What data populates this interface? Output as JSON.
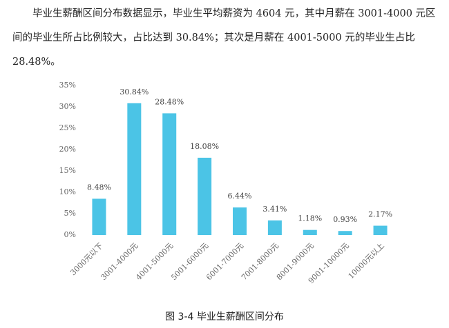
{
  "paragraph": "毕业生薪酬区间分布数据显示，毕业生平均薪资为 4604 元，其中月薪在 3001-4000 元区间的毕业生所占比例较大，占比达到 30.84%；其次是月薪在 4001-5000 元的毕业生占比 28.48%。",
  "caption": "图 3-4 毕业生薪酬区间分布",
  "chart_data": {
    "type": "bar",
    "categories": [
      "3000元以下",
      "3001-4000元",
      "4001-5000元",
      "5001-6000元",
      "6001-7000元",
      "7001-8000元",
      "8001-9000元",
      "9001-10000元",
      "10000元以上"
    ],
    "values": [
      8.48,
      30.84,
      28.48,
      18.08,
      6.44,
      3.41,
      1.18,
      0.93,
      2.17
    ],
    "value_labels": [
      "8.48%",
      "30.84%",
      "28.48%",
      "18.08%",
      "6.44%",
      "3.41%",
      "1.18%",
      "0.93%",
      "2.17%"
    ],
    "color": "#4bc4e6",
    "ylim": [
      0,
      35
    ],
    "yticks": [
      {
        "value": 0,
        "label": "0%"
      },
      {
        "value": 5,
        "label": "5%"
      },
      {
        "value": 10,
        "label": "10%"
      },
      {
        "value": 15,
        "label": "15%"
      },
      {
        "value": 20,
        "label": "20%"
      },
      {
        "value": 25,
        "label": "25%"
      },
      {
        "value": 30,
        "label": "30%"
      },
      {
        "value": 35,
        "label": "35%"
      }
    ],
    "grid": false
  }
}
